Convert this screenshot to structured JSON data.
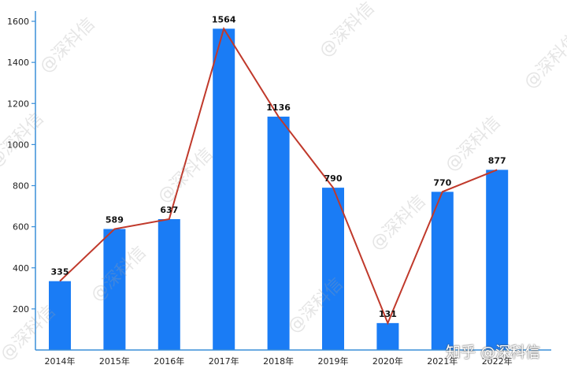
{
  "chart_data": {
    "type": "bar",
    "categories": [
      "2014年",
      "2015年",
      "2016年",
      "2017年",
      "2018年",
      "2019年",
      "2020年",
      "2021年",
      "2022年"
    ],
    "series": [
      {
        "values": [
          335,
          589,
          637,
          1564,
          1136,
          790,
          131,
          770,
          877
        ]
      }
    ],
    "overlay_line": true,
    "data_labels": true,
    "ylim": [
      0,
      1650
    ],
    "yticks": [
      200,
      400,
      600,
      800,
      1000,
      1200,
      1400,
      1600
    ],
    "grid": false,
    "xlabel": "",
    "ylabel": "",
    "colors": {
      "bar": "#1a7cf5",
      "line": "#c0392b",
      "axis": "#3a8fd9"
    }
  },
  "watermark_text": "@深科信",
  "credit_text": "知乎 @深科信"
}
